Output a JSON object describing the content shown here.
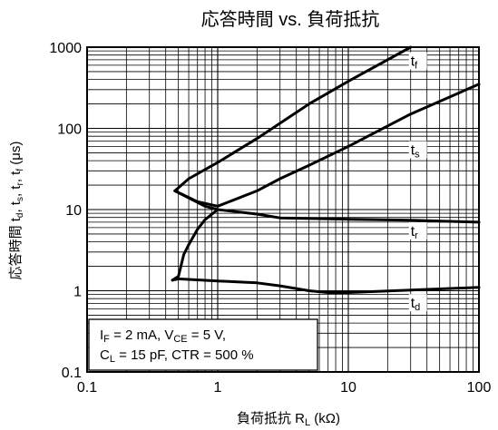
{
  "chart_data": {
    "type": "line",
    "title": "応答時間 vs. 負荷抵抗",
    "xlabel": {
      "text": "負荷抵抗  R",
      "sub": "L",
      "rest": " (kΩ)"
    },
    "ylabel": {
      "parts": [
        {
          "t": "応答時間  t"
        },
        {
          "t": "d",
          "sub": true
        },
        {
          "t": ", t"
        },
        {
          "t": "s",
          "sub": true
        },
        {
          "t": ", t"
        },
        {
          "t": "r",
          "sub": true
        },
        {
          "t": ", t"
        },
        {
          "t": "f",
          "sub": true
        },
        {
          "t": " (μs)"
        }
      ]
    },
    "x_scale": "log",
    "y_scale": "log",
    "xlim": [
      0.1,
      100
    ],
    "ylim": [
      0.1,
      1000
    ],
    "grid": true,
    "x_ticks": [
      {
        "value": 0.1,
        "label": "0.1"
      },
      {
        "value": 1,
        "label": "1"
      },
      {
        "value": 10,
        "label": "10"
      },
      {
        "value": 100,
        "label": "100"
      }
    ],
    "y_ticks": [
      {
        "value": 0.1,
        "label": "0.1"
      },
      {
        "value": 1,
        "label": "1"
      },
      {
        "value": 10,
        "label": "10"
      },
      {
        "value": 100,
        "label": "100"
      },
      {
        "value": 1000,
        "label": "1000"
      }
    ],
    "series": [
      {
        "name": "tf",
        "label_main": "t",
        "label_sub": "f",
        "label_at": [
          30,
          620
        ],
        "points": [
          [
            0.47,
            17
          ],
          [
            0.6,
            24
          ],
          [
            1,
            38
          ],
          [
            2,
            75
          ],
          [
            5,
            200
          ],
          [
            10,
            380
          ],
          [
            30,
            1000
          ]
        ]
      },
      {
        "name": "ts",
        "label_main": "t",
        "label_sub": "s",
        "label_at": [
          30,
          50
        ],
        "points": [
          [
            0.47,
            17
          ],
          [
            0.7,
            12.5
          ],
          [
            1,
            11
          ],
          [
            2,
            17
          ],
          [
            3,
            24
          ],
          [
            5,
            35
          ],
          [
            10,
            60
          ],
          [
            30,
            150
          ],
          [
            100,
            350
          ]
        ]
      },
      {
        "name": "tr",
        "label_main": "t",
        "label_sub": "r",
        "label_at": [
          30,
          5
        ],
        "points": [
          [
            0.47,
            17
          ],
          [
            0.8,
            11
          ],
          [
            1,
            10
          ],
          [
            2,
            8.8
          ],
          [
            3,
            7.9
          ],
          [
            10,
            7.6
          ],
          [
            30,
            7.4
          ],
          [
            100,
            7
          ]
        ]
      },
      {
        "name": "td",
        "label_main": "t",
        "label_sub": "d",
        "label_at": [
          30,
          0.65
        ],
        "points": [
          [
            0.45,
            1.35
          ],
          [
            0.5,
            1.5
          ],
          [
            0.55,
            2.8
          ],
          [
            0.6,
            3.7
          ],
          [
            0.7,
            5.7
          ],
          [
            0.8,
            7.5
          ],
          [
            1,
            10
          ]
        ],
        "points_lower": [
          [
            0.45,
            1.35
          ],
          [
            0.5,
            1.4
          ],
          [
            1,
            1.32
          ],
          [
            2,
            1.25
          ],
          [
            3,
            1.15
          ],
          [
            5,
            1.0
          ],
          [
            7,
            0.95
          ],
          [
            10,
            0.95
          ],
          [
            30,
            1.02
          ],
          [
            100,
            1.1
          ]
        ]
      }
    ],
    "conditions": [
      [
        {
          "t": "I"
        },
        {
          "t": "F",
          "sub": true
        },
        {
          "t": " = 2 mA, V"
        },
        {
          "t": "CE",
          "sub": true
        },
        {
          "t": " = 5 V,"
        }
      ],
      [
        {
          "t": "C"
        },
        {
          "t": "L",
          "sub": true
        },
        {
          "t": " = 15 pF, CTR = 500 %"
        }
      ]
    ]
  }
}
